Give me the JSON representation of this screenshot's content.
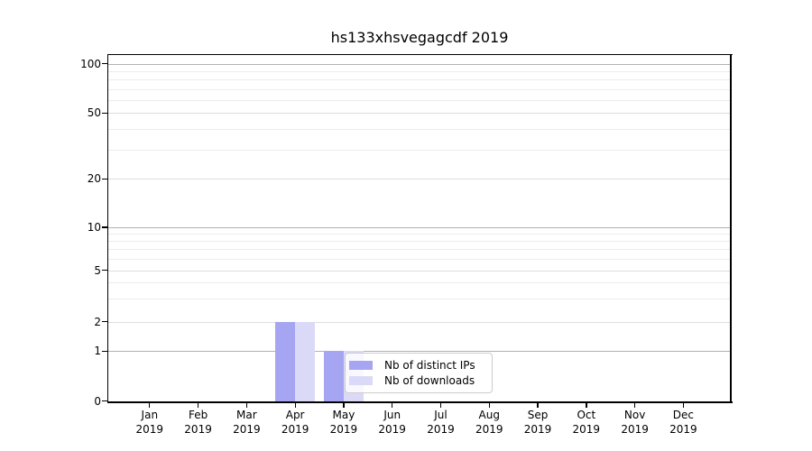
{
  "title": "hs133xhsvegagcdf 2019",
  "chart_data": {
    "type": "bar",
    "title": "hs133xhsvegagcdf 2019",
    "categories": [
      "Jan 2019",
      "Feb 2019",
      "Mar 2019",
      "Apr 2019",
      "May 2019",
      "Jun 2019",
      "Jul 2019",
      "Aug 2019",
      "Sep 2019",
      "Oct 2019",
      "Nov 2019",
      "Dec 2019"
    ],
    "series": [
      {
        "name": "Nb of distinct IPs",
        "color": "#a5a5f2",
        "values": [
          0,
          0,
          0,
          2,
          1,
          0,
          0,
          0,
          0,
          0,
          0,
          0
        ]
      },
      {
        "name": "Nb of downloads",
        "color": "#dadaf8",
        "values": [
          0,
          0,
          0,
          2,
          1,
          0,
          0,
          0,
          0,
          0,
          0,
          0
        ]
      }
    ],
    "yscale": "symlog",
    "yticks": [
      0,
      1,
      2,
      5,
      10,
      20,
      50,
      100
    ],
    "y_minor_gridlines": [
      3,
      4,
      6,
      7,
      8,
      9,
      30,
      40,
      60,
      70,
      80,
      90
    ],
    "ylim": [
      0,
      115
    ],
    "xlabel": "",
    "ylabel": "",
    "grid": "horizontal",
    "legend_position": "inside lower center"
  },
  "axes": {
    "y_tick_labels": [
      "0",
      "1",
      "2",
      "5",
      "10",
      "20",
      "50",
      "100"
    ],
    "x_months": [
      "Jan",
      "Feb",
      "Mar",
      "Apr",
      "May",
      "Jun",
      "Jul",
      "Aug",
      "Sep",
      "Oct",
      "Nov",
      "Dec"
    ],
    "x_year": "2019"
  },
  "legend": {
    "entries": [
      {
        "label": "Nb of distinct IPs",
        "color": "#a5a5f2"
      },
      {
        "label": "Nb of downloads",
        "color": "#dadaf8"
      }
    ]
  },
  "colors": {
    "background": "#ffffff",
    "bar_distinct_ips": "#a5a5f2",
    "bar_downloads": "#dadaf8",
    "grid_strong": "#b2b2b2",
    "grid_labeled": "#dedede",
    "grid_minor": "#ececec",
    "spine": "#000000",
    "legend_border": "#cccccc"
  }
}
